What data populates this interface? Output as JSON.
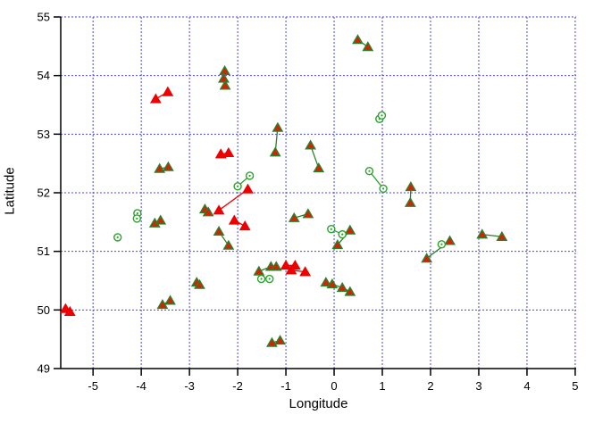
{
  "figure": {
    "background": "#ffffff"
  },
  "chart_data": {
    "type": "scatter",
    "title": "",
    "xlabel": "Longitude",
    "ylabel": "Latitude",
    "xlim": [
      -5.67,
      5.02
    ],
    "ylim": [
      49,
      55
    ],
    "xticks": [
      -5,
      -4,
      -3,
      -2,
      -1,
      0,
      1,
      2,
      3,
      4,
      5
    ],
    "yticks": [
      49,
      50,
      51,
      52,
      53,
      54,
      55
    ],
    "grid": {
      "show": true,
      "color": "#4545dd",
      "style": "dashed"
    },
    "axis_color": "#000000",
    "tick_font_px": 13,
    "legend": "none",
    "series": [
      {
        "name": "linked-triangle-pairs",
        "marker": "triangle",
        "marker_fill": "#d42300",
        "marker_stroke": "#2d7f2d",
        "line_color": "#2d7f2d",
        "groups": [
          [
            [
              -2.27,
              54.08
            ],
            [
              -2.29,
              53.95
            ],
            [
              -2.26,
              53.83
            ]
          ],
          [
            [
              0.49,
              54.61
            ],
            [
              0.7,
              54.49
            ]
          ],
          [
            [
              -1.17,
              53.11
            ],
            [
              -1.22,
              52.69
            ]
          ],
          [
            [
              -0.49,
              52.81
            ],
            [
              -0.32,
              52.42
            ]
          ],
          [
            [
              -3.62,
              52.41
            ],
            [
              -3.44,
              52.44
            ]
          ],
          [
            [
              -3.72,
              51.48
            ],
            [
              -3.6,
              51.53
            ]
          ],
          [
            [
              -2.68,
              51.72
            ],
            [
              -2.61,
              51.67
            ]
          ],
          [
            [
              -2.39,
              51.34
            ],
            [
              -2.19,
              51.1
            ]
          ],
          [
            [
              -0.83,
              51.57
            ],
            [
              -0.54,
              51.64
            ]
          ],
          [
            [
              0.07,
              51.11
            ],
            [
              0.33,
              51.36
            ]
          ],
          [
            [
              1.59,
              52.1
            ],
            [
              1.58,
              51.83
            ]
          ],
          [
            [
              3.07,
              51.29
            ],
            [
              3.48,
              51.25
            ]
          ],
          [
            [
              -3.56,
              50.09
            ],
            [
              -3.4,
              50.16
            ]
          ],
          [
            [
              -2.85,
              50.47
            ],
            [
              -2.79,
              50.43
            ]
          ],
          [
            [
              -0.17,
              50.47
            ],
            [
              -0.04,
              50.44
            ],
            [
              0.17,
              50.38
            ],
            [
              0.33,
              50.31
            ]
          ],
          [
            [
              -1.56,
              50.66
            ],
            [
              -1.31,
              50.74
            ]
          ],
          [
            [
              -1.2,
              50.74
            ]
          ],
          [
            [
              -1.29,
              49.44
            ],
            [
              -1.12,
              49.48
            ]
          ],
          [
            [
              1.92,
              50.88
            ],
            [
              2.4,
              51.18
            ]
          ]
        ]
      },
      {
        "name": "linked-open-circle-pairs",
        "marker": "open-circle",
        "marker_fill": "#ffffff",
        "marker_stroke": "#2aa32a",
        "line_color": "#2aa32a",
        "groups": [
          [
            [
              0.94,
              53.26
            ],
            [
              0.99,
              53.32
            ]
          ],
          [
            [
              -2.0,
              52.11
            ],
            [
              -1.75,
              52.29
            ]
          ],
          [
            [
              0.73,
              52.37
            ],
            [
              1.02,
              52.07
            ]
          ],
          [
            [
              -4.08,
              51.65
            ],
            [
              -4.09,
              51.56
            ]
          ],
          [
            [
              -4.49,
              51.24
            ]
          ],
          [
            [
              -0.06,
              51.38
            ],
            [
              0.17,
              51.29
            ]
          ],
          [
            [
              -1.51,
              50.53
            ],
            [
              -1.34,
              50.53
            ]
          ],
          [
            [
              2.23,
              51.12
            ]
          ]
        ]
      },
      {
        "name": "linked-red-triangle-pairs",
        "marker": "triangle",
        "marker_fill": "#ee0000",
        "marker_stroke": "#ee0000",
        "line_color": "#ee0000",
        "groups": [
          [
            [
              -3.7,
              53.6
            ],
            [
              -3.45,
              53.72
            ]
          ],
          [
            [
              -2.35,
              52.66
            ],
            [
              -2.19,
              52.68
            ]
          ],
          [
            [
              -2.39,
              51.7
            ],
            [
              -1.79,
              52.06
            ]
          ],
          [
            [
              -2.07,
              51.53
            ],
            [
              -1.85,
              51.43
            ]
          ],
          [
            [
              -1.0,
              50.76
            ],
            [
              -0.81,
              50.76
            ]
          ],
          [
            [
              -0.89,
              50.68
            ],
            [
              -0.6,
              50.65
            ]
          ],
          [
            [
              -5.57,
              50.02
            ],
            [
              -5.48,
              49.97
            ]
          ]
        ]
      }
    ]
  }
}
